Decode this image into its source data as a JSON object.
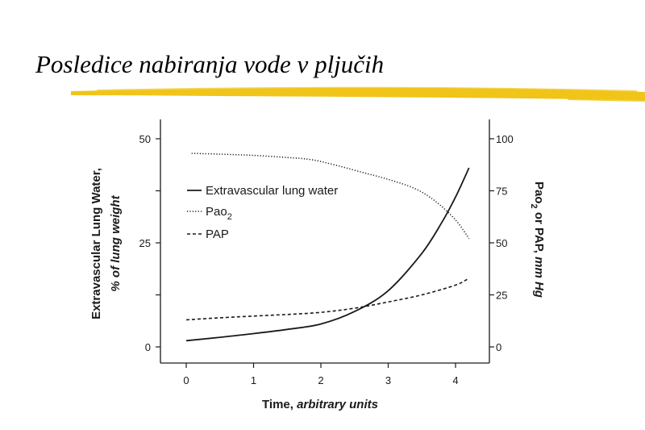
{
  "slide": {
    "title": "Posledice nabiranja vode v pljučih",
    "brush_color": "#f0c419"
  },
  "chart_data": {
    "type": "line",
    "xlabel": {
      "main": "Time, ",
      "italic": "arbitrary units"
    },
    "ylabel_left": {
      "line1": "Extravascular Lung Water,",
      "line2": "% of lung weight"
    },
    "ylabel_right": {
      "text": "Pao",
      "sub": "2",
      "rest": " or PAP, ",
      "italic": "mm Hg"
    },
    "xlim": [
      0,
      4.5
    ],
    "ylim_left": [
      0,
      50
    ],
    "ylim_right": [
      0,
      100
    ],
    "x_ticks": [
      0,
      1,
      2,
      3,
      4
    ],
    "y_left_ticks": [
      0,
      25,
      50
    ],
    "y_right_ticks": [
      0,
      25,
      50,
      75,
      100
    ],
    "grid": false,
    "legend_position": "upper-left",
    "series": [
      {
        "name": "Extravascular lung water",
        "axis": "left",
        "style": "solid",
        "x": [
          0,
          0.5,
          1.0,
          1.5,
          2.0,
          2.5,
          3.0,
          3.5,
          3.8,
          4.0,
          4.2
        ],
        "y": [
          1.5,
          2.3,
          3.2,
          4.2,
          5.5,
          8.5,
          13.5,
          22.5,
          30.0,
          36.0,
          43.0
        ]
      },
      {
        "name": "Pao",
        "name_sub": "2",
        "axis": "right",
        "style": "dotted",
        "x": [
          0.08,
          0.5,
          1.0,
          1.5,
          1.85,
          2.2,
          2.6,
          3.0,
          3.4,
          3.7,
          4.0,
          4.2
        ],
        "y": [
          93.0,
          92.6,
          92.0,
          91.0,
          90.0,
          87.5,
          84.0,
          80.5,
          76.0,
          70.0,
          61.0,
          52.0
        ]
      },
      {
        "name": "PAP",
        "axis": "right",
        "style": "dashed",
        "x": [
          0,
          0.5,
          1.0,
          1.5,
          2.0,
          2.5,
          3.0,
          3.5,
          4.0,
          4.2
        ],
        "y": [
          13.0,
          14.0,
          14.8,
          15.6,
          16.6,
          18.6,
          21.6,
          25.0,
          29.7,
          33.0
        ]
      }
    ]
  }
}
